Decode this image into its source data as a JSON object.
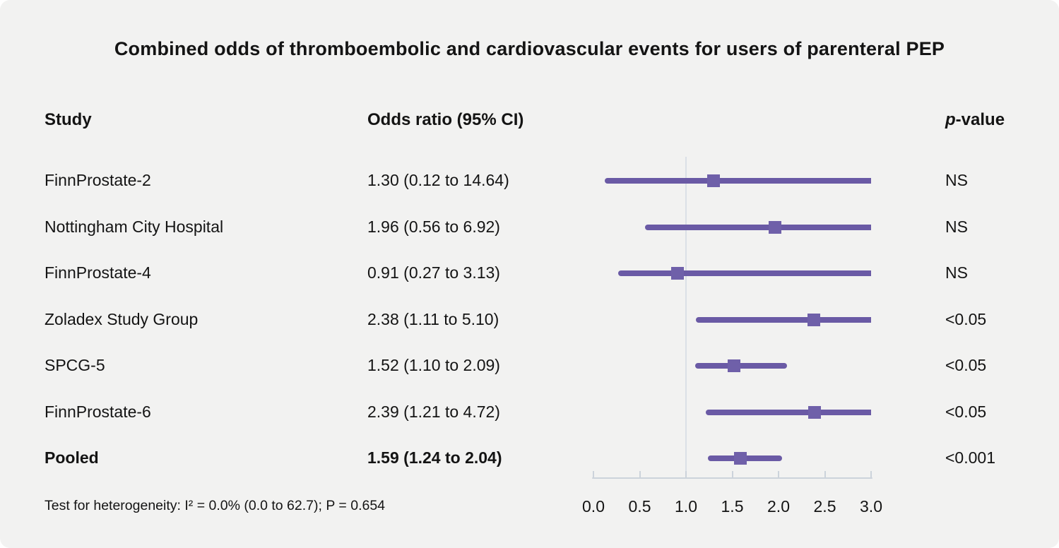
{
  "title": "Combined odds of thromboembolic and cardiovascular events for users of parenteral PEP",
  "header": {
    "study": "Study",
    "odds_ratio": "Odds ratio (95% CI)",
    "p_italic": "p",
    "p_rest": "-value"
  },
  "footnote": "Test for heterogeneity: I² = 0.0% (0.0 to 62.7); P = 0.654",
  "colors": {
    "background": "#f2f2f1",
    "ci_purple": "#6a5aa5",
    "marker_purple": "#6f60a9",
    "reference_line": "#dbe0e6",
    "axis": "#ccd3db",
    "text": "#141414"
  },
  "chart_data": {
    "type": "forest",
    "title": "Combined odds of thromboembolic and cardiovascular events for users of parenteral PEP",
    "xlabel": "",
    "xlim": [
      0.0,
      3.0
    ],
    "x_tick_values": [
      0.0,
      0.5,
      1.0,
      1.5,
      2.0,
      2.5,
      3.0
    ],
    "x_tick_labels": [
      "0.0",
      "0.5",
      "1.0",
      "1.5",
      "2.0",
      "2.5",
      "3.0"
    ],
    "reference_line_x": 1.0,
    "legend": null,
    "grid": false,
    "rows": [
      {
        "study": "FinnProstate-2",
        "or": 1.3,
        "ci_low": 0.12,
        "ci_high": 14.64,
        "or_label": "1.30 (0.12 to 14.64)",
        "p": "NS",
        "bold": false
      },
      {
        "study": "Nottingham City Hospital",
        "or": 1.96,
        "ci_low": 0.56,
        "ci_high": 6.92,
        "or_label": "1.96 (0.56 to 6.92)",
        "p": "NS",
        "bold": false
      },
      {
        "study": "FinnProstate-4",
        "or": 0.91,
        "ci_low": 0.27,
        "ci_high": 3.13,
        "or_label": "0.91 (0.27 to 3.13)",
        "p": "NS",
        "bold": false
      },
      {
        "study": "Zoladex Study Group",
        "or": 2.38,
        "ci_low": 1.11,
        "ci_high": 5.1,
        "or_label": "2.38 (1.11 to 5.10)",
        "p": "<0.05",
        "bold": false
      },
      {
        "study": "SPCG-5",
        "or": 1.52,
        "ci_low": 1.1,
        "ci_high": 2.09,
        "or_label": "1.52 (1.10 to 2.09)",
        "p": "<0.05",
        "bold": false
      },
      {
        "study": "FinnProstate-6",
        "or": 2.39,
        "ci_low": 1.21,
        "ci_high": 4.72,
        "or_label": "2.39 (1.21 to 4.72)",
        "p": "<0.05",
        "bold": false
      },
      {
        "study": "Pooled",
        "or": 1.59,
        "ci_low": 1.24,
        "ci_high": 2.04,
        "or_label": "1.59 (1.24 to 2.04)",
        "p": "<0.001",
        "bold": true
      }
    ]
  }
}
